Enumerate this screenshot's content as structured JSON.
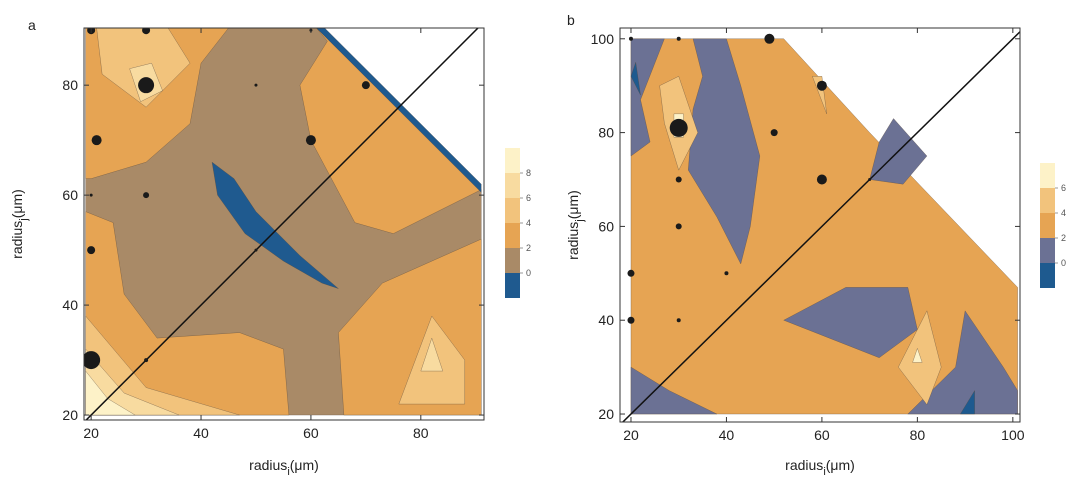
{
  "chart_data": [
    {
      "type": "contour",
      "panel_label": "a",
      "x_label": {
        "main": "radius",
        "sub": "i",
        "unit": "(μm)"
      },
      "y_label": {
        "main": "radius",
        "sub": "j",
        "unit": "(μm)"
      },
      "xlim": [
        18.7,
        91.5
      ],
      "ylim": [
        19.1,
        90.4
      ],
      "xticks": [
        20,
        40,
        60,
        80
      ],
      "yticks": [
        20,
        40,
        60,
        80
      ],
      "colorbar": {
        "ticks": [
          0,
          2,
          4,
          6,
          8
        ],
        "colors": [
          "#1f5a8f",
          "#a98a67",
          "#e6a453",
          "#f2c37c",
          "#f8dba0",
          "#fdf2c8"
        ]
      },
      "regions": [
        {
          "band": 1,
          "points": [
            [
              19,
              90.4
            ],
            [
              61,
              90.4
            ],
            [
              91,
              61
            ],
            [
              91,
              20
            ],
            [
              19,
              20
            ]
          ]
        },
        {
          "band": 2,
          "points": [
            [
              19,
              90.4
            ],
            [
              45,
              90.4
            ],
            [
              40,
              84
            ],
            [
              38,
              73
            ],
            [
              30,
              66
            ],
            [
              20,
              63
            ],
            [
              19,
              63
            ]
          ]
        },
        {
          "band": 2,
          "points": [
            [
              61,
              90.4
            ],
            [
              91,
              61
            ],
            [
              83,
              57
            ],
            [
              75,
              53
            ],
            [
              68,
              55
            ],
            [
              60,
              70
            ],
            [
              58,
              80
            ],
            [
              63,
              88
            ]
          ]
        },
        {
          "band": 2,
          "points": [
            [
              19,
              57
            ],
            [
              24,
              55
            ],
            [
              26,
              42
            ],
            [
              32,
              34
            ],
            [
              47,
              35
            ],
            [
              55,
              32
            ],
            [
              56,
              20
            ],
            [
              19,
              20
            ]
          ]
        },
        {
          "band": 2,
          "points": [
            [
              66,
              20
            ],
            [
              65,
              35
            ],
            [
              73,
              44
            ],
            [
              91,
              52
            ],
            [
              91,
              20
            ]
          ]
        },
        {
          "band": 3,
          "points": [
            [
              21,
              90.4
            ],
            [
              34,
              90.4
            ],
            [
              38,
              84
            ],
            [
              30,
              76
            ],
            [
              22,
              82
            ]
          ]
        },
        {
          "band": 3,
          "points": [
            [
              76,
              22
            ],
            [
              82,
              38
            ],
            [
              88,
              30
            ],
            [
              88,
              22
            ]
          ]
        },
        {
          "band": 3,
          "points": [
            [
              19,
              38
            ],
            [
              30,
              25
            ],
            [
              47,
              20
            ],
            [
              19,
              20
            ]
          ]
        },
        {
          "band": 4,
          "points": [
            [
              27,
              83
            ],
            [
              31,
              84
            ],
            [
              33,
              79
            ],
            [
              29,
              77
            ]
          ]
        },
        {
          "band": 4,
          "points": [
            [
              80,
              28
            ],
            [
              82,
              34
            ],
            [
              84,
              28
            ]
          ]
        },
        {
          "band": 4,
          "points": [
            [
              19,
              32
            ],
            [
              26,
              24
            ],
            [
              36,
              20
            ],
            [
              19,
              20
            ]
          ]
        },
        {
          "band": 5,
          "points": [
            [
              19,
              28
            ],
            [
              23,
              23
            ],
            [
              28,
              20
            ],
            [
              19,
              20
            ]
          ]
        },
        {
          "band": 0,
          "points": [
            [
              42,
              66
            ],
            [
              46,
              63
            ],
            [
              50,
              57
            ],
            [
              58,
              49
            ],
            [
              65,
              43
            ],
            [
              62,
              44
            ],
            [
              55,
              48
            ],
            [
              48,
              53
            ],
            [
              43,
              60
            ]
          ]
        },
        {
          "band": 0,
          "points": [
            [
              61,
              90.4
            ],
            [
              62.5,
              90.4
            ],
            [
              91,
              62
            ],
            [
              91,
              60.5
            ]
          ]
        }
      ],
      "points": {
        "x": [
          20,
          30,
          60,
          30,
          70,
          50,
          21,
          60,
          20,
          30,
          20,
          50,
          20,
          30
        ],
        "y": [
          90,
          90,
          90,
          80,
          80,
          80,
          70,
          70,
          60,
          60,
          50,
          50,
          30,
          30
        ],
        "sizes": [
          4,
          4,
          1.5,
          8,
          4,
          1.5,
          5,
          5,
          1.5,
          3,
          4,
          1.5,
          9,
          2
        ]
      }
    },
    {
      "type": "contour",
      "panel_label": "b",
      "x_label": {
        "main": "radius",
        "sub": "i",
        "unit": "(μm)"
      },
      "y_label": {
        "main": "radius",
        "sub": "j",
        "unit": "(μm)"
      },
      "xlim": [
        17.7,
        101.5
      ],
      "ylim": [
        18.3,
        102.3
      ],
      "xticks": [
        20,
        40,
        60,
        80,
        100
      ],
      "yticks": [
        20,
        40,
        60,
        80,
        100
      ],
      "colorbar": {
        "ticks": [
          0,
          2,
          4,
          6
        ],
        "colors": [
          "#1e5a8f",
          "#6b7194",
          "#e6a453",
          "#f2c37c",
          "#fdf2c8"
        ]
      },
      "regions": [
        {
          "band": 2,
          "points": [
            [
              20,
              100
            ],
            [
              52,
              100
            ],
            [
              70,
              80
            ],
            [
              101,
              47
            ],
            [
              101,
              20
            ],
            [
              20,
              20
            ]
          ]
        },
        {
          "band": 1,
          "points": [
            [
              20,
              100
            ],
            [
              27,
              100
            ],
            [
              22,
              87
            ],
            [
              24,
              78
            ],
            [
              20,
              75
            ]
          ]
        },
        {
          "band": 1,
          "points": [
            [
              33,
              100
            ],
            [
              40,
              100
            ],
            [
              43,
              90
            ],
            [
              47,
              75
            ],
            [
              45,
              60
            ],
            [
              43,
              52
            ],
            [
              38,
              62
            ],
            [
              32,
              72
            ],
            [
              33,
              85
            ],
            [
              35,
              92
            ]
          ]
        },
        {
          "band": 1,
          "points": [
            [
              75,
              83
            ],
            [
              82,
              75
            ],
            [
              77,
              69
            ],
            [
              70,
              70
            ],
            [
              72,
              78
            ]
          ]
        },
        {
          "band": 1,
          "points": [
            [
              52,
              40
            ],
            [
              65,
              47
            ],
            [
              78,
              47
            ],
            [
              80,
              38
            ],
            [
              72,
              32
            ]
          ]
        },
        {
          "band": 1,
          "points": [
            [
              20,
              30
            ],
            [
              28,
              25
            ],
            [
              38,
              20
            ],
            [
              20,
              20
            ]
          ]
        },
        {
          "band": 1,
          "points": [
            [
              78,
              20
            ],
            [
              88,
              30
            ],
            [
              90,
              42
            ],
            [
              98,
              30
            ],
            [
              101,
              25
            ],
            [
              101,
              20
            ]
          ]
        },
        {
          "band": 3,
          "points": [
            [
              26,
              90
            ],
            [
              30,
              92
            ],
            [
              34,
              80
            ],
            [
              30,
              72
            ],
            [
              27,
              82
            ]
          ]
        },
        {
          "band": 3,
          "points": [
            [
              58,
              92
            ],
            [
              60,
              92
            ],
            [
              61,
              84
            ]
          ]
        },
        {
          "band": 3,
          "points": [
            [
              76,
              30
            ],
            [
              82,
              42
            ],
            [
              85,
              30
            ],
            [
              82,
              22
            ]
          ]
        },
        {
          "band": 4,
          "points": [
            [
              29,
              84
            ],
            [
              31,
              84
            ],
            [
              31,
              79
            ],
            [
              29,
              79
            ]
          ]
        },
        {
          "band": 4,
          "points": [
            [
              79,
              31
            ],
            [
              80,
              34
            ],
            [
              81,
              31
            ]
          ]
        },
        {
          "band": 0,
          "points": [
            [
              20,
              92
            ],
            [
              21,
              95
            ],
            [
              22,
              88
            ]
          ]
        },
        {
          "band": 0,
          "points": [
            [
              89,
              20
            ],
            [
              92,
              25
            ],
            [
              92,
              20
            ]
          ]
        }
      ],
      "points": {
        "x": [
          20,
          30,
          49,
          60,
          30,
          50,
          60,
          30,
          30,
          20,
          40,
          20,
          30,
          70
        ],
        "y": [
          100,
          100,
          100,
          90,
          81,
          80,
          70,
          70,
          60,
          50,
          50,
          40,
          40,
          70
        ],
        "sizes": [
          2,
          2,
          5,
          5,
          9,
          3.5,
          5,
          3,
          3,
          3.5,
          2,
          3.5,
          2,
          1.5
        ]
      }
    }
  ]
}
